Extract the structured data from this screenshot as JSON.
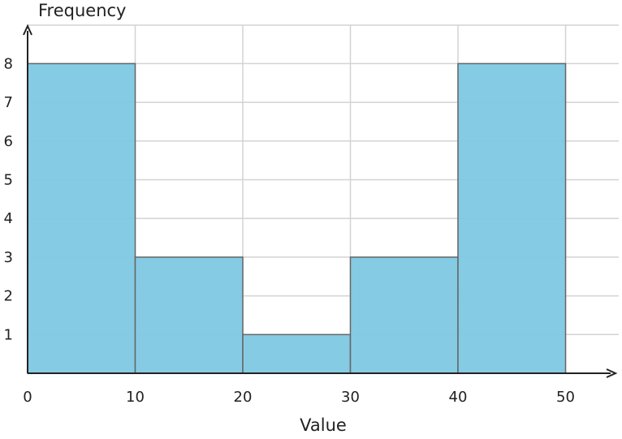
{
  "chart_data": {
    "type": "bar",
    "title": "",
    "xlabel": "Value",
    "ylabel": "Frequency",
    "bins": [
      {
        "start": 0,
        "end": 10,
        "count": 8
      },
      {
        "start": 10,
        "end": 20,
        "count": 3
      },
      {
        "start": 20,
        "end": 30,
        "count": 1
      },
      {
        "start": 30,
        "end": 40,
        "count": 3
      },
      {
        "start": 40,
        "end": 50,
        "count": 8
      }
    ],
    "xticks": [
      0,
      10,
      20,
      30,
      40,
      50
    ],
    "yticks": [
      1,
      2,
      3,
      4,
      5,
      6,
      7,
      8
    ],
    "xlim": [
      0,
      55
    ],
    "ylim": [
      0,
      9
    ],
    "grid": true,
    "colors": {
      "bar_fill": "#7ec8e3",
      "bar_stroke": "#666666",
      "grid": "#d3d3d3",
      "axis": "#222222"
    }
  }
}
